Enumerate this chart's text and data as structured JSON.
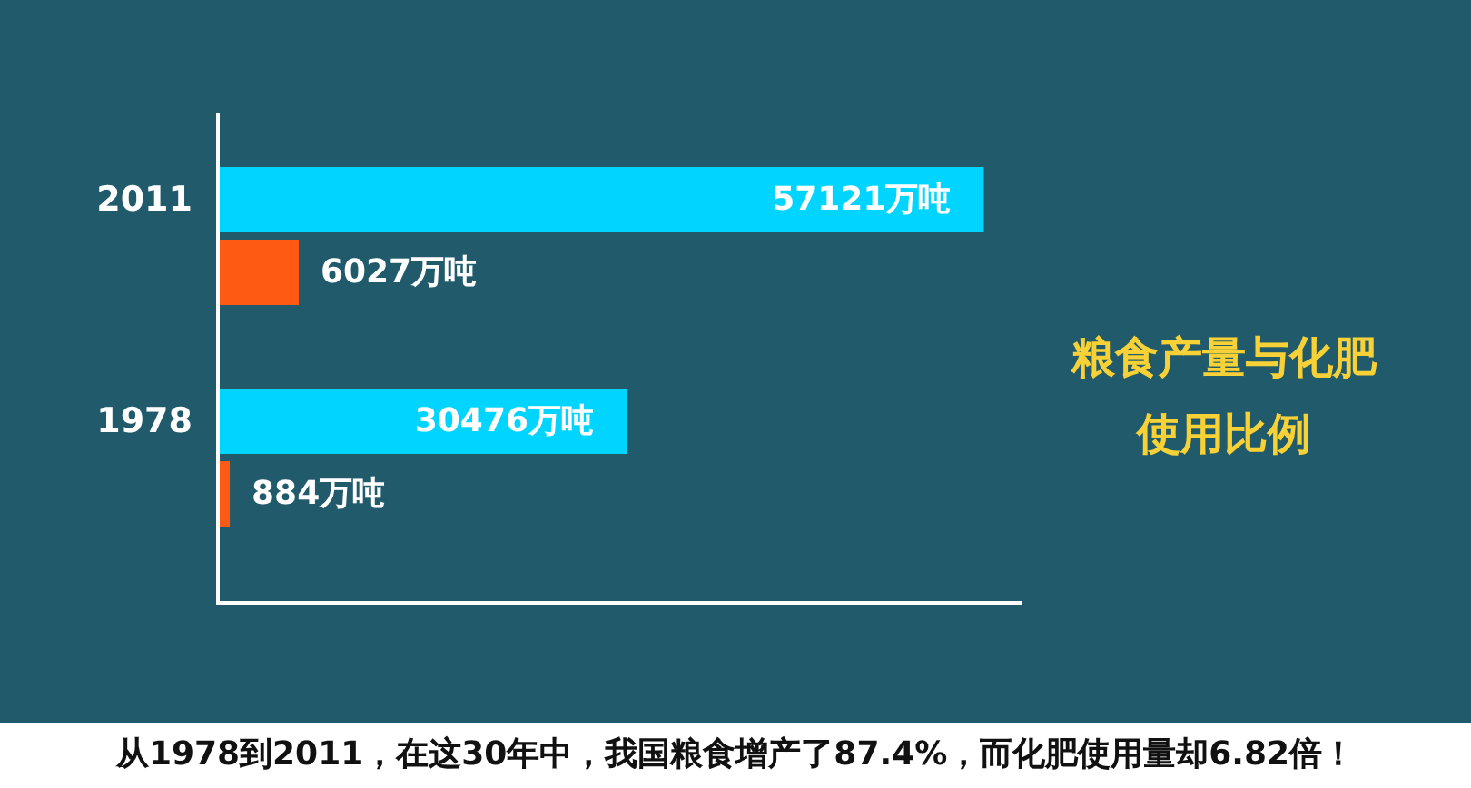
{
  "chart_data": {
    "type": "bar",
    "orientation": "horizontal",
    "title": "粮食产量与化肥使用比例",
    "categories": [
      "2011",
      "1978"
    ],
    "series": [
      {
        "color": "#00d4ff",
        "values": [
          57121,
          30476
        ],
        "value_labels": [
          "57121万吨",
          "30476万吨"
        ]
      },
      {
        "color": "#ff5a13",
        "values": [
          6027,
          884
        ],
        "value_labels": [
          "6027万吨",
          "884万吨"
        ]
      }
    ],
    "xlim": [
      0,
      60000
    ],
    "tick_labels": "y",
    "annotations": [
      "从1978到2011，在这30年中，我国粮食增产了87.4%，而化肥使用量却6.82倍！"
    ]
  }
}
